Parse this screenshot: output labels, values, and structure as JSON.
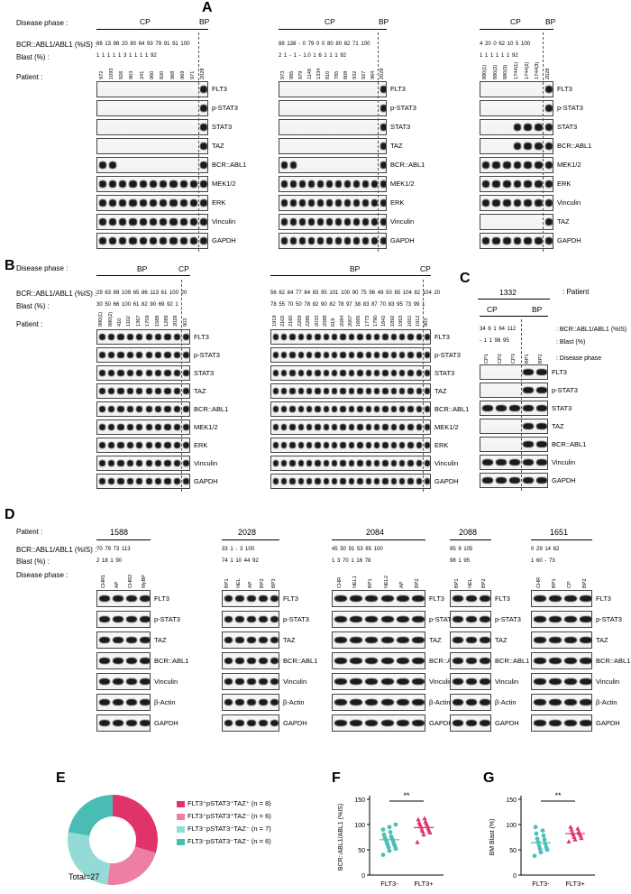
{
  "panels": {
    "A": "A",
    "B": "B",
    "C": "C",
    "D": "D",
    "E": "E",
    "F": "F",
    "G": "G"
  },
  "labels": {
    "disease_phase": "Disease phase :",
    "bcr_is": "BCR::ABL1/ABL1 (%IS) :",
    "blast": "Blast (%) :",
    "patient": "Patient :",
    "cp": "CP",
    "bp": "BP",
    "patient_right": ": Patient",
    "bcr_right": ": BCR::ABL1/ABL1 (%IS)",
    "blast_right": ": Blast (%)",
    "phase_right": ": Disease phase"
  },
  "panelA": {
    "sets": [
      {
        "bcr": "88 13 98 20 80 64 93 79 91  91  100",
        "blast": "1  1  1  1  1  3  1  1  1  1    92",
        "lanes": [
          "972",
          "1093",
          "926",
          "903",
          "241",
          "960",
          "820",
          "968",
          "969",
          "971",
          "2028"
        ],
        "blots": [
          "FLT3",
          "p-STAT3",
          "STAT3",
          "TAZ",
          "BCR::ABL1",
          "MEK1/2",
          "ERK",
          "Vinculin",
          "GAPDH"
        ]
      },
      {
        "bcr": "88 138 -  0  79  0  0  80 80 82 71  100",
        "blast": "2  1  -  1  -  1.0 1  6  1  1  1    92",
        "lanes": [
          "973",
          "985",
          "979",
          "1148",
          "1334",
          "810",
          "785",
          "808",
          "932",
          "927",
          "964",
          "2028"
        ],
        "blots": [
          "FLT3",
          "p-STAT3",
          "STAT3",
          "TAZ",
          "BCR::ABL1",
          "MEK1/2",
          "ERK",
          "Vinculin",
          "GAPDH"
        ]
      },
      {
        "bcr": "4  20  0  62  10  5  100",
        "blast": "1  1  1  1  1  1    92",
        "lanes": [
          "880(1)",
          "880(2)",
          "880(3)",
          "1744(1)",
          "1744(2)",
          "1744(3)",
          "2028"
        ],
        "blots": [
          "FLT3",
          "p-STAT3",
          "STAT3",
          "BCR::ABL1",
          "MEK1/2",
          "ERK",
          "Vinculin",
          "TAZ",
          "GAPDH"
        ]
      }
    ]
  },
  "panelB": {
    "sets": [
      {
        "bcr": "29 63 89 109 65 86 113 61 100 20",
        "blast": "30 50 66 100 61 82 90 69 92  1",
        "lanes": [
          "880(1)",
          "880(2)",
          "410",
          "1102",
          "1367",
          "1759",
          "1588",
          "1289",
          "2028",
          "903"
        ],
        "blots": [
          "FLT3",
          "p-STAT3",
          "STAT3",
          "TAZ",
          "BCR::ABL1",
          "MEK1/2",
          "ERK",
          "Vinculin",
          "GAPDH"
        ]
      },
      {
        "bcr": "56 62 84 77 84 83 95 101 100 90   75 96 49 50 65 104 82 104   20",
        "blast": "78 55 70 50 78 82 90 82 78 97   38 83 87 70 83 95 73 99   1",
        "lanes": [
          "1919",
          "2105",
          "2160",
          "2269",
          "2286",
          "2033",
          "2088",
          "619",
          "2084",
          "2007",
          "1665",
          "1773",
          "1790",
          "1842",
          "1892",
          "1953",
          "1651",
          "1912",
          "903"
        ],
        "blots": [
          "FLT3",
          "p-STAT3",
          "STAT3",
          "TAZ",
          "BCR::ABL1",
          "MEK1/2",
          "ERK",
          "Vinculin",
          "GAPDH"
        ]
      }
    ]
  },
  "panelC": {
    "patient": "1332",
    "bcr": "34  6  1  64 112",
    "blast": "-  1  1  98  95",
    "lanes": [
      "CP1",
      "CP2",
      "CP3",
      "BP1",
      "BP2"
    ],
    "blots": [
      "FLT3",
      "p-STAT3",
      "STAT3",
      "TAZ",
      "BCR::ABL1",
      "Vinculin",
      "GAPDH"
    ]
  },
  "panelD": {
    "sets": [
      {
        "patient": "1588",
        "bcr": "70 79 73 113",
        "blast": "2  18  1  90",
        "lanes": [
          "CHR1",
          "AP",
          "CHR2",
          "MyBP"
        ],
        "blots": [
          "FLT3",
          "p-STAT3",
          "TAZ",
          "BCR::ABL1",
          "Vinculin",
          "β-Actin",
          "GAPDH"
        ]
      },
      {
        "patient": "2028",
        "bcr": "33  1  -  3  100",
        "blast": "74  1  10  44  92",
        "lanes": [
          "BP1",
          "NEL",
          "AP",
          "BP2",
          "BP3"
        ],
        "blots": [
          "FLT3",
          "p-STAT3",
          "TAZ",
          "BCR::ABL1",
          "Vinculin",
          "β-Actin",
          "GAPDH"
        ]
      },
      {
        "patient": "2084",
        "bcr": "45 50 91 53 65 100",
        "blast": "1  3  70  1  16  78",
        "lanes": [
          "CHR",
          "NEL1",
          "BP1",
          "NEL2",
          "AP",
          "BP2"
        ],
        "blots": [
          "FLT3",
          "p-STAT3",
          "TAZ",
          "BCR::ABL1",
          "Vinculin",
          "β-Actin",
          "GAPDH"
        ]
      },
      {
        "patient": "2088",
        "bcr": "95  9  105",
        "blast": "98  1  95",
        "lanes": [
          "BP1",
          "NEL",
          "BP2"
        ],
        "blots": [
          "FLT3",
          "p-STAT3",
          "TAZ",
          "BCR::ABL1",
          "Vinculin",
          "β-Actin",
          "GAPDH"
        ]
      },
      {
        "patient": "1651",
        "bcr": "0  29  14  82",
        "blast": "1  60  -  73",
        "lanes": [
          "CHR",
          "BP1",
          "CP",
          "BP2"
        ],
        "blots": [
          "FLT3",
          "p-STAT3",
          "TAZ",
          "BCR::ABL1",
          "Vinculin",
          "β-Actin",
          "GAPDH"
        ]
      }
    ]
  },
  "panelE": {
    "legend": [
      {
        "text": "FLT3⁺pSTAT3⁺TAZ⁺ (n = 8)",
        "color": "#e0336a"
      },
      {
        "text": "FLT3⁺pSTAT3⁺TAZ⁻ (n = 6)",
        "color": "#ec7fa2"
      },
      {
        "text": "FLT3⁻pSTAT3⁺TAZ⁻ (n = 7)",
        "color": "#94dad6"
      },
      {
        "text": "FLT3⁻pSTAT3⁻TAZ⁻ (n = 6)",
        "color": "#49bcb4"
      }
    ],
    "total": "Total=27",
    "values": [
      8,
      6,
      7,
      6
    ]
  },
  "panelF": {
    "ylabel": "BCR::ABL1/ABL1 (%IS)",
    "sig": "**",
    "yticks": [
      "0",
      "50",
      "100",
      "150"
    ],
    "ymax": 150,
    "groups": [
      "FLT3-",
      "FLT3+"
    ],
    "flt3neg": [
      40,
      48,
      52,
      55,
      58,
      60,
      62,
      65,
      68,
      70,
      72,
      74,
      76,
      80,
      85,
      90,
      95,
      100
    ],
    "flt3pos": [
      65,
      80,
      84,
      86,
      88,
      90,
      92,
      95,
      98,
      100,
      102,
      104,
      106,
      110,
      112
    ],
    "means": [
      70,
      94
    ]
  },
  "panelG": {
    "ylabel": "BM Blast (%)",
    "sig": "**",
    "yticks": [
      "0",
      "50",
      "100",
      "150"
    ],
    "ymax": 150,
    "groups": [
      "FLT3-",
      "FLT3+"
    ],
    "flt3neg": [
      38,
      45,
      50,
      52,
      55,
      58,
      62,
      65,
      70,
      72,
      78,
      82,
      88,
      95
    ],
    "flt3pos": [
      66,
      70,
      73,
      75,
      78,
      80,
      82,
      84,
      86,
      90,
      92,
      95
    ],
    "means": [
      64,
      82
    ]
  }
}
